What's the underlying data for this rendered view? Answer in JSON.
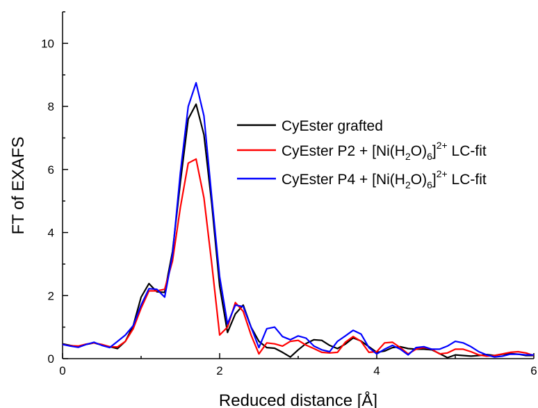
{
  "chart_data": {
    "type": "line",
    "title": "",
    "xlabel": "Reduced distance [Å]",
    "ylabel": "FT of EXAFS",
    "xlim": [
      0,
      6
    ],
    "ylim": [
      0,
      11
    ],
    "x_ticks": [
      "0",
      "2",
      "4",
      "6"
    ],
    "y_ticks": [
      "0",
      "2",
      "4",
      "6",
      "8",
      "10"
    ],
    "grid": false,
    "legend_position": "center-right",
    "series": [
      {
        "name": "CyEster grafted",
        "color": "#000000",
        "points": [
          [
            0,
            0.47
          ],
          [
            0.1,
            0.42
          ],
          [
            0.2,
            0.38
          ],
          [
            0.3,
            0.45
          ],
          [
            0.4,
            0.5
          ],
          [
            0.5,
            0.43
          ],
          [
            0.6,
            0.38
          ],
          [
            0.7,
            0.32
          ],
          [
            0.8,
            0.55
          ],
          [
            0.9,
            1.05
          ],
          [
            1.0,
            1.95
          ],
          [
            1.1,
            2.38
          ],
          [
            1.2,
            2.12
          ],
          [
            1.3,
            2.1
          ],
          [
            1.4,
            3.4
          ],
          [
            1.5,
            5.6
          ],
          [
            1.6,
            7.6
          ],
          [
            1.7,
            8.07
          ],
          [
            1.8,
            7.1
          ],
          [
            1.9,
            4.9
          ],
          [
            2.0,
            2.3
          ],
          [
            2.1,
            0.83
          ],
          [
            2.2,
            1.42
          ],
          [
            2.3,
            1.7
          ],
          [
            2.4,
            1.0
          ],
          [
            2.5,
            0.55
          ],
          [
            2.6,
            0.35
          ],
          [
            2.7,
            0.33
          ],
          [
            2.8,
            0.2
          ],
          [
            2.9,
            0.05
          ],
          [
            3.0,
            0.28
          ],
          [
            3.1,
            0.48
          ],
          [
            3.2,
            0.6
          ],
          [
            3.3,
            0.58
          ],
          [
            3.4,
            0.42
          ],
          [
            3.5,
            0.32
          ],
          [
            3.6,
            0.46
          ],
          [
            3.7,
            0.66
          ],
          [
            3.8,
            0.56
          ],
          [
            3.9,
            0.38
          ],
          [
            4.0,
            0.2
          ],
          [
            4.1,
            0.24
          ],
          [
            4.2,
            0.35
          ],
          [
            4.3,
            0.38
          ],
          [
            4.4,
            0.32
          ],
          [
            4.5,
            0.3
          ],
          [
            4.6,
            0.3
          ],
          [
            4.7,
            0.28
          ],
          [
            4.8,
            0.16
          ],
          [
            4.9,
            0.03
          ],
          [
            5.0,
            0.12
          ],
          [
            5.1,
            0.1
          ],
          [
            5.2,
            0.08
          ],
          [
            5.3,
            0.1
          ],
          [
            5.4,
            0.13
          ],
          [
            5.5,
            0.1
          ],
          [
            5.6,
            0.14
          ],
          [
            5.7,
            0.16
          ],
          [
            5.8,
            0.14
          ],
          [
            5.9,
            0.1
          ],
          [
            6.0,
            0.1
          ]
        ]
      },
      {
        "name": "CyEster P2 + [Ni(H2O)6]2+ LC-fit",
        "color": "#ff0000",
        "points": [
          [
            0,
            0.45
          ],
          [
            0.1,
            0.41
          ],
          [
            0.2,
            0.4
          ],
          [
            0.3,
            0.46
          ],
          [
            0.4,
            0.5
          ],
          [
            0.5,
            0.45
          ],
          [
            0.6,
            0.38
          ],
          [
            0.7,
            0.37
          ],
          [
            0.8,
            0.55
          ],
          [
            0.9,
            0.95
          ],
          [
            1.0,
            1.6
          ],
          [
            1.1,
            2.15
          ],
          [
            1.2,
            2.15
          ],
          [
            1.3,
            2.2
          ],
          [
            1.4,
            3.1
          ],
          [
            1.5,
            4.8
          ],
          [
            1.6,
            6.2
          ],
          [
            1.7,
            6.33
          ],
          [
            1.8,
            5.1
          ],
          [
            1.9,
            3.0
          ],
          [
            2.0,
            0.75
          ],
          [
            2.1,
            1.0
          ],
          [
            2.2,
            1.78
          ],
          [
            2.3,
            1.5
          ],
          [
            2.4,
            0.75
          ],
          [
            2.5,
            0.15
          ],
          [
            2.6,
            0.5
          ],
          [
            2.7,
            0.47
          ],
          [
            2.8,
            0.4
          ],
          [
            2.9,
            0.55
          ],
          [
            3.0,
            0.58
          ],
          [
            3.1,
            0.43
          ],
          [
            3.2,
            0.32
          ],
          [
            3.3,
            0.2
          ],
          [
            3.4,
            0.18
          ],
          [
            3.5,
            0.2
          ],
          [
            3.6,
            0.52
          ],
          [
            3.7,
            0.7
          ],
          [
            3.8,
            0.55
          ],
          [
            3.9,
            0.2
          ],
          [
            4.0,
            0.22
          ],
          [
            4.1,
            0.5
          ],
          [
            4.2,
            0.52
          ],
          [
            4.3,
            0.35
          ],
          [
            4.4,
            0.15
          ],
          [
            4.5,
            0.3
          ],
          [
            4.6,
            0.35
          ],
          [
            4.7,
            0.3
          ],
          [
            4.8,
            0.15
          ],
          [
            4.9,
            0.18
          ],
          [
            5.0,
            0.3
          ],
          [
            5.1,
            0.3
          ],
          [
            5.2,
            0.22
          ],
          [
            5.3,
            0.12
          ],
          [
            5.4,
            0.08
          ],
          [
            5.5,
            0.1
          ],
          [
            5.6,
            0.15
          ],
          [
            5.7,
            0.2
          ],
          [
            5.8,
            0.22
          ],
          [
            5.9,
            0.18
          ],
          [
            6.0,
            0.1
          ]
        ]
      },
      {
        "name": "CyEster P4 + [Ni(H2O)6]2+ LC-fit",
        "color": "#0000ff",
        "points": [
          [
            0,
            0.45
          ],
          [
            0.1,
            0.4
          ],
          [
            0.2,
            0.36
          ],
          [
            0.3,
            0.45
          ],
          [
            0.4,
            0.52
          ],
          [
            0.5,
            0.42
          ],
          [
            0.6,
            0.35
          ],
          [
            0.7,
            0.55
          ],
          [
            0.8,
            0.75
          ],
          [
            0.9,
            1.05
          ],
          [
            1.0,
            1.7
          ],
          [
            1.1,
            2.22
          ],
          [
            1.2,
            2.2
          ],
          [
            1.3,
            1.95
          ],
          [
            1.4,
            3.3
          ],
          [
            1.5,
            5.9
          ],
          [
            1.6,
            8.0
          ],
          [
            1.7,
            8.75
          ],
          [
            1.8,
            7.7
          ],
          [
            1.9,
            5.1
          ],
          [
            2.0,
            2.6
          ],
          [
            2.1,
            1.1
          ],
          [
            2.2,
            1.7
          ],
          [
            2.3,
            1.65
          ],
          [
            2.4,
            1.0
          ],
          [
            2.5,
            0.35
          ],
          [
            2.6,
            0.95
          ],
          [
            2.7,
            1.0
          ],
          [
            2.8,
            0.7
          ],
          [
            2.9,
            0.6
          ],
          [
            3.0,
            0.72
          ],
          [
            3.1,
            0.65
          ],
          [
            3.2,
            0.4
          ],
          [
            3.3,
            0.28
          ],
          [
            3.4,
            0.22
          ],
          [
            3.5,
            0.55
          ],
          [
            3.6,
            0.72
          ],
          [
            3.7,
            0.9
          ],
          [
            3.8,
            0.78
          ],
          [
            3.9,
            0.35
          ],
          [
            4.0,
            0.15
          ],
          [
            4.1,
            0.3
          ],
          [
            4.2,
            0.42
          ],
          [
            4.3,
            0.3
          ],
          [
            4.4,
            0.12
          ],
          [
            4.5,
            0.35
          ],
          [
            4.6,
            0.38
          ],
          [
            4.7,
            0.3
          ],
          [
            4.8,
            0.3
          ],
          [
            4.9,
            0.4
          ],
          [
            5.0,
            0.55
          ],
          [
            5.1,
            0.5
          ],
          [
            5.2,
            0.38
          ],
          [
            5.3,
            0.22
          ],
          [
            5.4,
            0.12
          ],
          [
            5.5,
            0.05
          ],
          [
            5.6,
            0.08
          ],
          [
            5.7,
            0.14
          ],
          [
            5.8,
            0.14
          ],
          [
            5.9,
            0.12
          ],
          [
            6.0,
            0.12
          ]
        ]
      }
    ],
    "legend": [
      {
        "text": "CyEster P2 + [Ni(H",
        "sub1": "2",
        "mid": "O)",
        "sub2": "6",
        "close": "]",
        "sup": "2+",
        "tail": " LC-fit"
      },
      {
        "text": "CyEster P4 + [Ni(H",
        "sub1": "2",
        "mid": "O)",
        "sub2": "6",
        "close": "]",
        "sup": "2+",
        "tail": " LC-fit"
      }
    ],
    "legend_first": "CyEster grafted"
  }
}
